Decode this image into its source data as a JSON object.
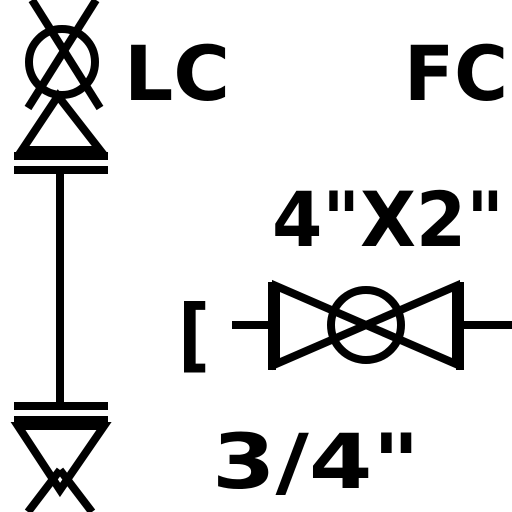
{
  "labels": {
    "lc": "LC",
    "fc": "FC",
    "size_main": "4\"X2\"",
    "size_small": "3/4\"",
    "bracket": "["
  },
  "colors": {
    "stroke": "#000000",
    "background": "#ffffff"
  },
  "symbols": [
    "ball-valve-icon",
    "gate-valve-icon",
    "pipe-line-icon",
    "bracket-icon"
  ]
}
